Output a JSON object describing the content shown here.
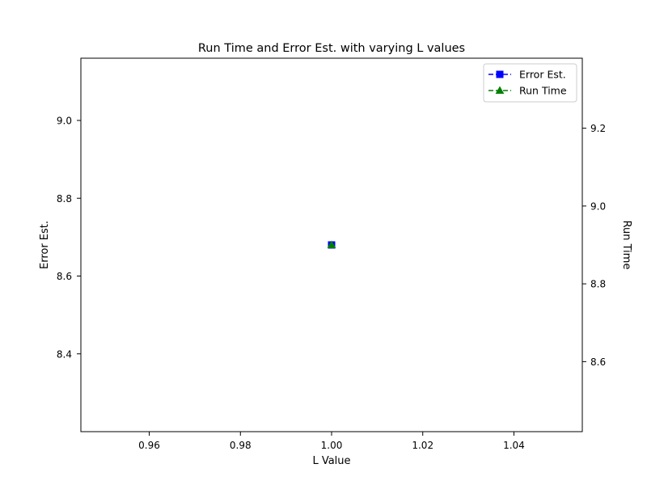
{
  "chart_data": {
    "type": "line",
    "title": "Run Time and Error Est. with varying L values",
    "xlabel": "L Value",
    "ylabel_left": "Error Est.",
    "ylabel_right": "Run Time",
    "xlim": [
      0.945,
      1.055
    ],
    "ylim_left": [
      8.2,
      9.16
    ],
    "ylim_right": [
      8.42,
      9.38
    ],
    "x_ticks": [
      0.96,
      0.98,
      1.0,
      1.02,
      1.04
    ],
    "x_tick_labels": [
      "0.96",
      "0.98",
      "1.00",
      "1.02",
      "1.04"
    ],
    "y_left_ticks": [
      8.4,
      8.6,
      8.8,
      9.0
    ],
    "y_left_tick_labels": [
      "8.4",
      "8.6",
      "8.8",
      "9.0"
    ],
    "y_right_ticks": [
      8.6,
      8.8,
      9.0,
      9.2
    ],
    "y_right_tick_labels": [
      "8.6",
      "8.8",
      "9.0",
      "9.2"
    ],
    "grid": false,
    "legend_position": "top-right",
    "series": [
      {
        "name": "Error Est.",
        "axis": "left",
        "color": "#0000ff",
        "marker": "square",
        "linestyle": "dashed",
        "x": [
          1.0
        ],
        "y": [
          8.68
        ]
      },
      {
        "name": "Run Time",
        "axis": "right",
        "color": "#008000",
        "marker": "triangle",
        "linestyle": "dashed",
        "x": [
          1.0
        ],
        "y": [
          8.9
        ]
      }
    ]
  }
}
